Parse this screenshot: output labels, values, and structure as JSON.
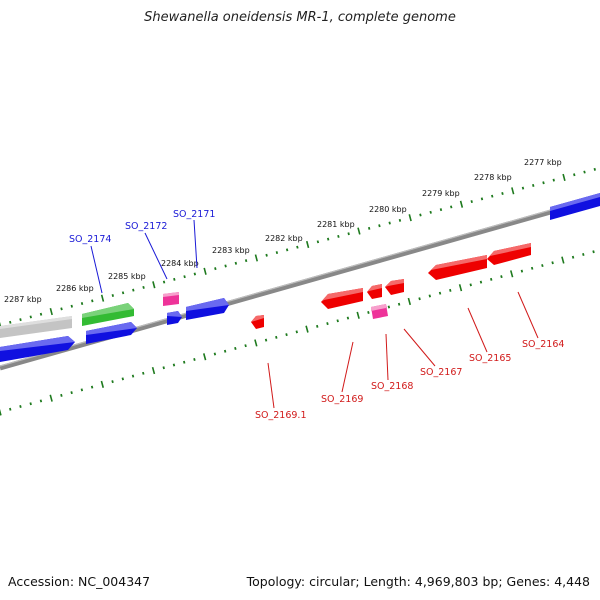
{
  "title": "Shewanella oneidensis MR-1, complete genome",
  "footer": {
    "accession": "Accession: NC_004347",
    "stats": "Topology: circular; Length: 4,969,803 bp; Genes: 4,448"
  },
  "colors": {
    "forward_gene": "#0000e6",
    "forward_gene_alt": "#22bb22",
    "pseudo_gene": "#bbbbbb",
    "reverse_gene": "#ee0000",
    "rna_gene": "#ee2299",
    "backbone": "#888888",
    "tick": "#1e7a1e",
    "forward_label": "#1a1ad6",
    "reverse_label": "#d11a1a"
  },
  "ruler": {
    "kbp_labels": [
      "2277 kbp",
      "2278 kbp",
      "2279 kbp",
      "2280 kbp",
      "2281 kbp",
      "2282 kbp",
      "2283 kbp",
      "2284 kbp",
      "2285 kbp",
      "2286 kbp",
      "2287 kbp"
    ]
  },
  "gene_labels": {
    "forward": [
      "SO_2171",
      "SO_2172",
      "SO_2174"
    ],
    "reverse": [
      "SO_2164",
      "SO_2165",
      "SO_2167",
      "SO_2168",
      "SO_2169",
      "SO_2169.1"
    ]
  }
}
